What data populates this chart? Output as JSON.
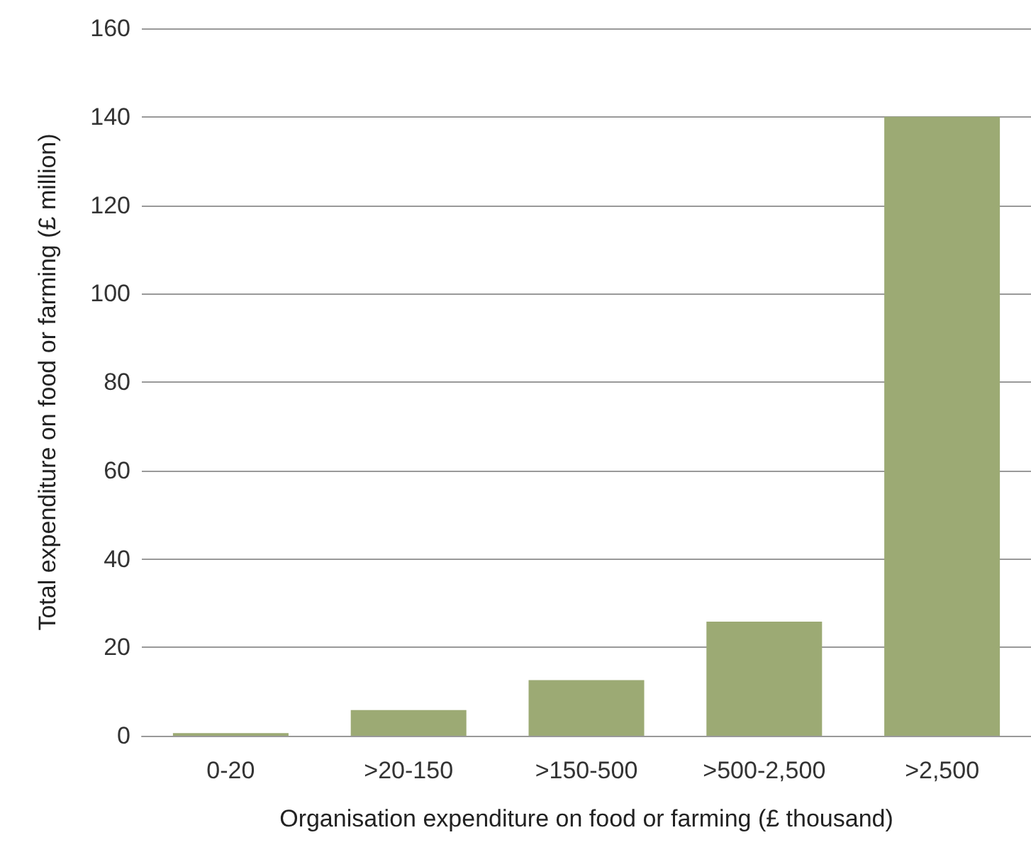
{
  "chart_data": {
    "type": "bar",
    "xlabel": "Organisation expenditure on food or farming (£ thousand)",
    "ylabel": "Total expenditure on food or farming (£ million)",
    "categories": [
      "0-20",
      ">20-150",
      ">150-500",
      ">500-2,500",
      ">2,500"
    ],
    "values": [
      0.6,
      5.8,
      12.6,
      25.8,
      140
    ],
    "color": "#9caa74",
    "ylim": [
      0,
      160
    ],
    "yticks": [
      0,
      20,
      40,
      60,
      80,
      100,
      120,
      140,
      160
    ],
    "grid": "y"
  }
}
